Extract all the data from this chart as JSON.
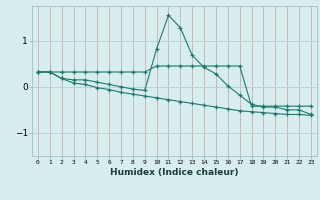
{
  "xlabel": "Humidex (Indice chaleur)",
  "x_values": [
    0,
    1,
    2,
    3,
    4,
    5,
    6,
    7,
    8,
    9,
    10,
    11,
    12,
    13,
    14,
    15,
    16,
    17,
    18,
    19,
    20,
    21,
    22,
    23
  ],
  "line1": [
    0.32,
    0.32,
    0.32,
    0.32,
    0.32,
    0.32,
    0.32,
    0.32,
    0.32,
    0.32,
    0.45,
    0.45,
    0.45,
    0.45,
    0.45,
    0.45,
    0.45,
    0.45,
    -0.42,
    -0.42,
    -0.42,
    -0.42,
    -0.42,
    -0.42
  ],
  "line2": [
    0.32,
    0.32,
    0.18,
    0.15,
    0.15,
    0.1,
    0.05,
    0.0,
    -0.05,
    -0.08,
    0.82,
    1.55,
    1.28,
    0.68,
    0.42,
    0.28,
    0.02,
    -0.18,
    -0.38,
    -0.44,
    -0.44,
    -0.5,
    -0.5,
    -0.6
  ],
  "line3": [
    0.32,
    0.32,
    0.18,
    0.08,
    0.05,
    -0.02,
    -0.06,
    -0.12,
    -0.16,
    -0.2,
    -0.24,
    -0.28,
    -0.32,
    -0.36,
    -0.4,
    -0.44,
    -0.48,
    -0.52,
    -0.54,
    -0.56,
    -0.58,
    -0.6,
    -0.6,
    -0.62
  ],
  "line_color": "#1a7a6e",
  "bg_color": "#d8eeee",
  "grid_color_major": "#b8d4d4",
  "grid_color_minor": "#cce4e4",
  "ylim": [
    -1.5,
    1.75
  ],
  "yticks": [
    -1,
    0,
    1
  ],
  "xlim": [
    -0.5,
    23.5
  ]
}
